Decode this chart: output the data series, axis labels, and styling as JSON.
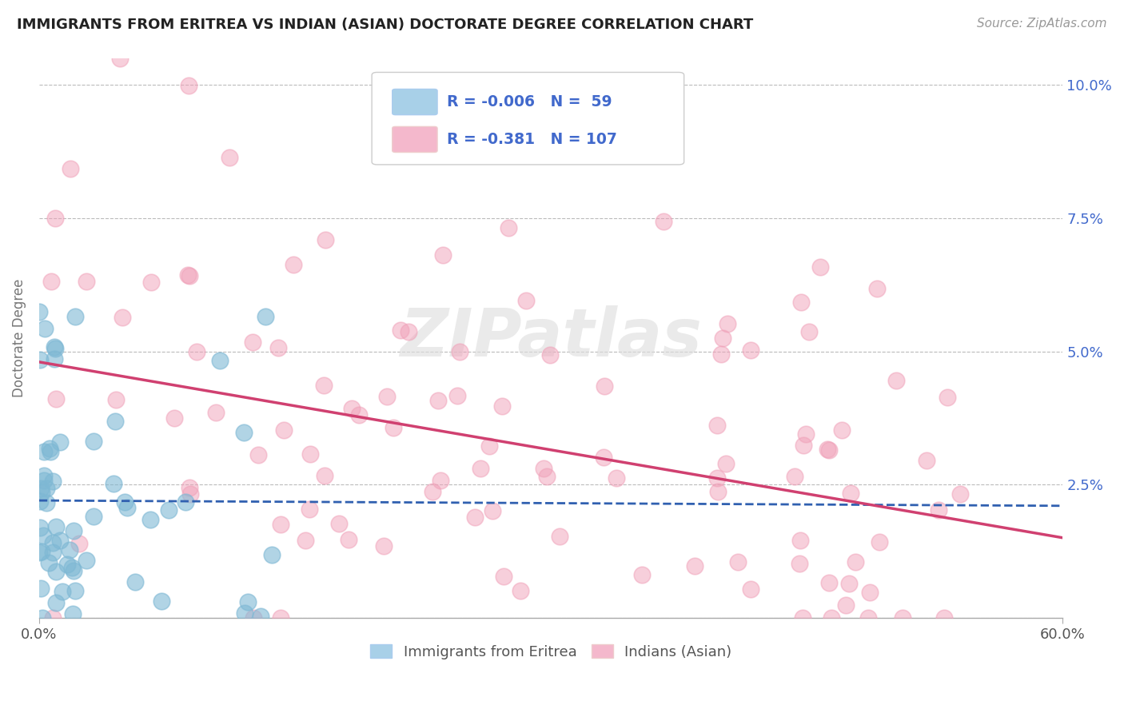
{
  "title": "IMMIGRANTS FROM ERITREA VS INDIAN (ASIAN) DOCTORATE DEGREE CORRELATION CHART",
  "source": "Source: ZipAtlas.com",
  "ylabel": "Doctorate Degree",
  "xmin": 0.0,
  "xmax": 0.6,
  "ymin": 0.0,
  "ymax": 0.105,
  "yticks": [
    0.0,
    0.025,
    0.05,
    0.075,
    0.1
  ],
  "ytick_labels": [
    "",
    "2.5%",
    "5.0%",
    "7.5%",
    "10.0%"
  ],
  "xticks": [
    0.0,
    0.6
  ],
  "xtick_labels": [
    "0.0%",
    "60.0%"
  ],
  "legend_labels": [
    "Immigrants from Eritrea",
    "Indians (Asian)"
  ],
  "legend_R": [
    "-0.006",
    "-0.381"
  ],
  "legend_N": [
    "59",
    "107"
  ],
  "blue_scatter_color": "#7EB8D4",
  "pink_scatter_color": "#F0A0B8",
  "blue_line_color": "#3060B0",
  "pink_line_color": "#D04070",
  "blue_legend_color": "#A8D0E8",
  "pink_legend_color": "#F4B8CC",
  "background_color": "#FFFFFF",
  "grid_color": "#BBBBBB",
  "title_color": "#222222",
  "ylabel_color": "#777777",
  "ytick_color": "#4169CC",
  "xtick_color": "#555555",
  "source_color": "#999999",
  "watermark": "ZIPatlas",
  "watermark_color": "#DDDDDD",
  "legend_text_color": "#4169CC",
  "legend_border_color": "#CCCCCC",
  "bottom_legend_text_color": "#555555",
  "blue_line_y0": 0.022,
  "blue_line_y1": 0.021,
  "pink_line_y0": 0.048,
  "pink_line_y1": 0.015
}
